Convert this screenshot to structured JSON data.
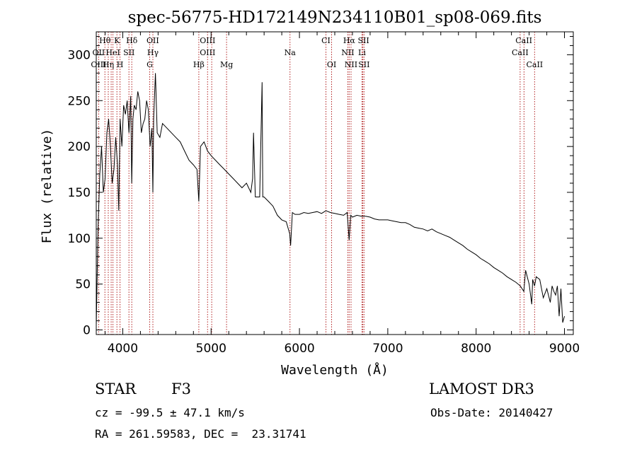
{
  "chart_data": {
    "type": "line",
    "title": "spec-56775-HD172149N234110B01_sp08-069.fits",
    "xlabel": "Wavelength (Å)",
    "ylabel": "Flux (relative)",
    "xlim": [
      3700,
      9100
    ],
    "ylim": [
      -5,
      325
    ],
    "xticks": [
      4000,
      5000,
      6000,
      7000,
      8000,
      9000
    ],
    "yticks": [
      0,
      50,
      100,
      150,
      200,
      250,
      300
    ],
    "grid": false,
    "series": [
      {
        "name": "flux",
        "x": [
          3700,
          3720,
          3740,
          3760,
          3780,
          3800,
          3820,
          3840,
          3860,
          3880,
          3900,
          3920,
          3940,
          3955,
          3970,
          3990,
          4010,
          4030,
          4050,
          4070,
          4090,
          4101,
          4115,
          4130,
          4150,
          4170,
          4190,
          4210,
          4230,
          4250,
          4270,
          4290,
          4310,
          4330,
          4341,
          4350,
          4370,
          4390,
          4420,
          4450,
          4500,
          4550,
          4600,
          4650,
          4700,
          4750,
          4800,
          4840,
          4861,
          4880,
          4920,
          4960,
          5000,
          5050,
          5100,
          5150,
          5200,
          5250,
          5300,
          5350,
          5400,
          5450,
          5470,
          5480,
          5500,
          5550,
          5577,
          5585,
          5600,
          5650,
          5700,
          5750,
          5800,
          5850,
          5890,
          5900,
          5920,
          5950,
          6000,
          6050,
          6100,
          6150,
          6200,
          6250,
          6300,
          6350,
          6400,
          6450,
          6500,
          6540,
          6563,
          6580,
          6600,
          6650,
          6700,
          6750,
          6800,
          6850,
          6900,
          6950,
          7000,
          7050,
          7100,
          7150,
          7200,
          7250,
          7300,
          7350,
          7400,
          7450,
          7500,
          7550,
          7600,
          7650,
          7700,
          7750,
          7800,
          7850,
          7900,
          7950,
          8000,
          8050,
          8100,
          8150,
          8200,
          8250,
          8300,
          8350,
          8400,
          8450,
          8500,
          8540,
          8560,
          8600,
          8630,
          8640,
          8662,
          8680,
          8720,
          8760,
          8800,
          8840,
          8860,
          8880,
          8900,
          8920,
          8940,
          8960,
          8980,
          9000
        ],
        "y": [
          5,
          110,
          170,
          200,
          150,
          165,
          215,
          230,
          200,
          160,
          175,
          210,
          180,
          130,
          230,
          200,
          245,
          235,
          250,
          215,
          255,
          160,
          230,
          245,
          240,
          260,
          250,
          215,
          225,
          230,
          250,
          240,
          200,
          220,
          150,
          230,
          280,
          215,
          210,
          225,
          220,
          215,
          210,
          205,
          195,
          185,
          180,
          175,
          140,
          200,
          205,
          195,
          190,
          185,
          180,
          175,
          170,
          165,
          160,
          155,
          160,
          150,
          165,
          215,
          145,
          145,
          270,
          145,
          145,
          140,
          135,
          125,
          120,
          118,
          105,
          92,
          128,
          126,
          126,
          128,
          127,
          128,
          129,
          127,
          130,
          128,
          127,
          126,
          125,
          128,
          98,
          125,
          123,
          125,
          124,
          124,
          123,
          121,
          120,
          120,
          120,
          119,
          118,
          117,
          117,
          115,
          112,
          111,
          110,
          108,
          110,
          107,
          105,
          103,
          101,
          98,
          95,
          92,
          88,
          85,
          82,
          78,
          75,
          72,
          68,
          65,
          62,
          58,
          55,
          52,
          48,
          42,
          65,
          50,
          28,
          55,
          48,
          58,
          55,
          35,
          45,
          30,
          48,
          42,
          38,
          48,
          15,
          45,
          8,
          15
        ]
      }
    ],
    "lines_top": [
      {
        "label": "Hθ",
        "x": 3798
      },
      {
        "label": "K",
        "x": 3934
      },
      {
        "label": "Hδ",
        "x": 4102
      },
      {
        "label": "OII",
        "x": 4340
      },
      {
        "label": "OIII",
        "x": 4960
      },
      {
        "label": "CI",
        "x": 6300
      },
      {
        "label": "Hα",
        "x": 6563
      },
      {
        "label": "SII",
        "x": 6725
      },
      {
        "label": "CaII",
        "x": 8540
      }
    ],
    "lines_mid": [
      {
        "label": "OII",
        "x": 3727
      },
      {
        "label": "HeI",
        "x": 3889
      },
      {
        "label": "SII",
        "x": 4070
      },
      {
        "label": "Hγ",
        "x": 4341
      },
      {
        "label": "OIII",
        "x": 4960
      },
      {
        "label": "Na",
        "x": 5893
      },
      {
        "label": "NII",
        "x": 6548
      },
      {
        "label": "Li",
        "x": 6708
      },
      {
        "label": "CaII",
        "x": 8498
      }
    ],
    "lines_low": [
      {
        "label": "OIII",
        "x": 3727
      },
      {
        "label": "Hη",
        "x": 3836
      },
      {
        "label": "H",
        "x": 3969
      },
      {
        "label": "G",
        "x": 4305
      },
      {
        "label": "Hβ",
        "x": 4861
      },
      {
        "label": "Mg",
        "x": 5175
      },
      {
        "label": "OI",
        "x": 6364
      },
      {
        "label": "NII",
        "x": 6584
      },
      {
        "label": "SII",
        "x": 6731
      },
      {
        "label": "CaII",
        "x": 8662
      }
    ],
    "marker_lines_x": [
      3727,
      3798,
      3836,
      3869,
      3889,
      3934,
      3969,
      4070,
      4102,
      4305,
      4341,
      4861,
      4960,
      5007,
      5175,
      5893,
      6300,
      6364,
      6548,
      6563,
      6584,
      6708,
      6717,
      6731,
      8498,
      8542,
      8662
    ]
  },
  "info": {
    "class": "STAR",
    "subclass": "F3",
    "survey": "LAMOST DR3",
    "cz": "cz = -99.5 ± 47.1 km/s",
    "obs_date": "Obs-Date: 20140427",
    "coords": "RA = 261.59583, DEC =  23.31741"
  }
}
